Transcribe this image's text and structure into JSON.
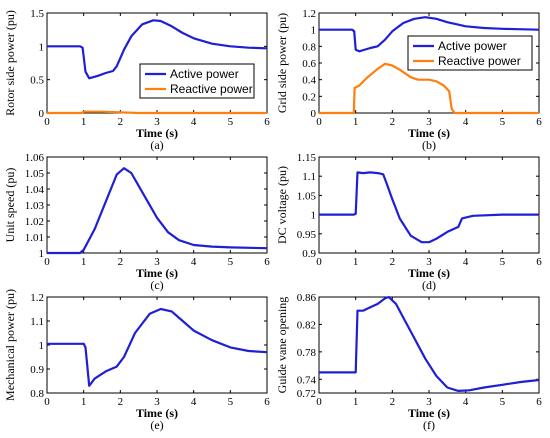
{
  "chart_data": [
    {
      "id": "a",
      "type": "line",
      "caption": "(a)",
      "xlabel": "Time (s)",
      "ylabel": "Rotor side power (pu)",
      "xlim": [
        0,
        6
      ],
      "ylim": [
        0,
        1.5
      ],
      "xticks": [
        "0",
        "1",
        "2",
        "3",
        "4",
        "5",
        "6"
      ],
      "yticks": [
        "0",
        "0.5",
        "1",
        "1.5"
      ],
      "ytick_values": [
        0,
        0.5,
        1,
        1.5
      ],
      "legend": "center-right",
      "series": [
        {
          "name": "Active power",
          "color": "#1f1fd6",
          "points": [
            [
              0,
              1
            ],
            [
              0.5,
              1
            ],
            [
              0.9,
              1
            ],
            [
              0.97,
              0.98
            ],
            [
              1.05,
              0.62
            ],
            [
              1.15,
              0.52
            ],
            [
              1.4,
              0.56
            ],
            [
              1.6,
              0.6
            ],
            [
              1.8,
              0.63
            ],
            [
              1.9,
              0.7
            ],
            [
              2.1,
              0.95
            ],
            [
              2.3,
              1.15
            ],
            [
              2.6,
              1.33
            ],
            [
              2.9,
              1.39
            ],
            [
              3.1,
              1.38
            ],
            [
              3.4,
              1.3
            ],
            [
              3.7,
              1.2
            ],
            [
              4,
              1.12
            ],
            [
              4.5,
              1.04
            ],
            [
              5,
              1
            ],
            [
              5.5,
              0.98
            ],
            [
              6,
              0.97
            ]
          ]
        },
        {
          "name": "Reactive power",
          "color": "#ff7f0e",
          "points": [
            [
              0,
              0
            ],
            [
              0.95,
              0
            ],
            [
              1,
              0.02
            ],
            [
              1.5,
              0.02
            ],
            [
              2,
              0.01
            ],
            [
              2.5,
              0
            ],
            [
              6,
              0
            ]
          ]
        }
      ]
    },
    {
      "id": "b",
      "type": "line",
      "caption": "(b)",
      "xlabel": "Time (s)",
      "ylabel": "Grid side power (pu)",
      "xlim": [
        0,
        6
      ],
      "ylim": [
        0,
        1.2
      ],
      "xticks": [
        "0",
        "1",
        "2",
        "3",
        "4",
        "5",
        "6"
      ],
      "yticks": [
        "0",
        "0.2",
        "0.4",
        "0.6",
        "0.8",
        "1",
        "1.2"
      ],
      "ytick_values": [
        0,
        0.2,
        0.4,
        0.6,
        0.8,
        1,
        1.2
      ],
      "legend": "center-right",
      "series": [
        {
          "name": "Active power",
          "color": "#1f1fd6",
          "points": [
            [
              0,
              1
            ],
            [
              0.9,
              1
            ],
            [
              0.96,
              0.98
            ],
            [
              1,
              0.76
            ],
            [
              1.1,
              0.74
            ],
            [
              1.4,
              0.78
            ],
            [
              1.6,
              0.8
            ],
            [
              1.8,
              0.88
            ],
            [
              2,
              0.98
            ],
            [
              2.3,
              1.08
            ],
            [
              2.6,
              1.13
            ],
            [
              2.9,
              1.15
            ],
            [
              3.2,
              1.13
            ],
            [
              3.5,
              1.09
            ],
            [
              4,
              1.04
            ],
            [
              4.5,
              1.02
            ],
            [
              5,
              1.01
            ],
            [
              6,
              1
            ]
          ]
        },
        {
          "name": "Reactive power",
          "color": "#ff7f0e",
          "points": [
            [
              0,
              0
            ],
            [
              0.95,
              0
            ],
            [
              0.97,
              0.3
            ],
            [
              1.1,
              0.33
            ],
            [
              1.3,
              0.42
            ],
            [
              1.6,
              0.53
            ],
            [
              1.8,
              0.59
            ],
            [
              2,
              0.57
            ],
            [
              2.2,
              0.52
            ],
            [
              2.5,
              0.43
            ],
            [
              2.7,
              0.4
            ],
            [
              3,
              0.4
            ],
            [
              3.2,
              0.38
            ],
            [
              3.4,
              0.33
            ],
            [
              3.55,
              0.26
            ],
            [
              3.62,
              0.05
            ],
            [
              3.7,
              0
            ],
            [
              6,
              0
            ]
          ]
        }
      ]
    },
    {
      "id": "c",
      "type": "line",
      "caption": "(c)",
      "xlabel": "Time (s)",
      "ylabel": "Unit speed (pu)",
      "xlim": [
        0,
        6
      ],
      "ylim": [
        1,
        1.06
      ],
      "xticks": [
        "0",
        "1",
        "2",
        "3",
        "4",
        "5",
        "6"
      ],
      "yticks": [
        "1",
        "1.01",
        "1.02",
        "1.03",
        "1.04",
        "1.05",
        "1.06"
      ],
      "ytick_values": [
        1,
        1.01,
        1.02,
        1.03,
        1.04,
        1.05,
        1.06
      ],
      "series": [
        {
          "color": "#1f1fd6",
          "points": [
            [
              0,
              1
            ],
            [
              0.9,
              1
            ],
            [
              1,
              1.002
            ],
            [
              1.3,
              1.015
            ],
            [
              1.6,
              1.032
            ],
            [
              1.9,
              1.049
            ],
            [
              2.1,
              1.053
            ],
            [
              2.3,
              1.05
            ],
            [
              2.6,
              1.038
            ],
            [
              3,
              1.022
            ],
            [
              3.3,
              1.013
            ],
            [
              3.6,
              1.008
            ],
            [
              4,
              1.005
            ],
            [
              4.5,
              1.004
            ],
            [
              5,
              1.0035
            ],
            [
              6,
              1.003
            ]
          ]
        }
      ]
    },
    {
      "id": "d",
      "type": "line",
      "caption": "(d)",
      "xlabel": "Time (s)",
      "ylabel": "DC voltage (pu)",
      "xlim": [
        0,
        6
      ],
      "ylim": [
        0.9,
        1.15
      ],
      "xticks": [
        "0",
        "1",
        "2",
        "3",
        "4",
        "5",
        "6"
      ],
      "yticks": [
        "0.9",
        "0.95",
        "1",
        "1.05",
        "1.1",
        "1.15"
      ],
      "ytick_values": [
        0.9,
        0.95,
        1,
        1.05,
        1.1,
        1.15
      ],
      "series": [
        {
          "color": "#1f1fd6",
          "points": [
            [
              0,
              1
            ],
            [
              0.95,
              1
            ],
            [
              1,
              1.002
            ],
            [
              1.05,
              1.11
            ],
            [
              1.2,
              1.108
            ],
            [
              1.4,
              1.11
            ],
            [
              1.6,
              1.108
            ],
            [
              1.75,
              1.105
            ],
            [
              1.85,
              1.08
            ],
            [
              2,
              1.04
            ],
            [
              2.2,
              0.99
            ],
            [
              2.5,
              0.945
            ],
            [
              2.8,
              0.928
            ],
            [
              3,
              0.928
            ],
            [
              3.2,
              0.937
            ],
            [
              3.5,
              0.955
            ],
            [
              3.8,
              0.968
            ],
            [
              3.9,
              0.99
            ],
            [
              4.2,
              0.997
            ],
            [
              5,
              1
            ],
            [
              6,
              1
            ]
          ]
        }
      ]
    },
    {
      "id": "e",
      "type": "line",
      "caption": "(e)",
      "xlabel": "Time (s)",
      "ylabel": "Mechanical power (pu)",
      "xlim": [
        0,
        6
      ],
      "ylim": [
        0.8,
        1.2
      ],
      "xticks": [
        "0",
        "1",
        "2",
        "3",
        "4",
        "5",
        "6"
      ],
      "yticks": [
        "0.8",
        "0.9",
        "1",
        "1.1",
        "1.2"
      ],
      "ytick_values": [
        0.8,
        0.9,
        1,
        1.1,
        1.2
      ],
      "series": [
        {
          "color": "#1f1fd6",
          "points": [
            [
              0,
              1.005
            ],
            [
              1,
              1.005
            ],
            [
              1.05,
              0.99
            ],
            [
              1.15,
              0.83
            ],
            [
              1.3,
              0.86
            ],
            [
              1.6,
              0.89
            ],
            [
              1.9,
              0.91
            ],
            [
              2.1,
              0.95
            ],
            [
              2.4,
              1.05
            ],
            [
              2.8,
              1.13
            ],
            [
              3.1,
              1.15
            ],
            [
              3.4,
              1.14
            ],
            [
              3.7,
              1.1
            ],
            [
              4,
              1.06
            ],
            [
              4.5,
              1.02
            ],
            [
              5,
              0.99
            ],
            [
              5.5,
              0.975
            ],
            [
              6,
              0.97
            ]
          ]
        }
      ]
    },
    {
      "id": "f",
      "type": "line",
      "caption": "(f)",
      "xlabel": "Time (s)",
      "ylabel": "Guide vane opening",
      "xlim": [
        0,
        6
      ],
      "ylim": [
        0.72,
        0.86
      ],
      "xticks": [
        "0",
        "1",
        "2",
        "3",
        "4",
        "5",
        "6"
      ],
      "yticks": [
        "0.72",
        "0.74",
        "0.78",
        "0.82",
        "0.86"
      ],
      "ytick_values": [
        0.72,
        0.74,
        0.78,
        0.82,
        0.86
      ],
      "series": [
        {
          "color": "#1f1fd6",
          "points": [
            [
              0,
              0.75
            ],
            [
              1,
              0.75
            ],
            [
              1.05,
              0.84
            ],
            [
              1.2,
              0.84
            ],
            [
              1.4,
              0.845
            ],
            [
              1.6,
              0.85
            ],
            [
              1.8,
              0.858
            ],
            [
              1.9,
              0.86
            ],
            [
              2.1,
              0.85
            ],
            [
              2.3,
              0.83
            ],
            [
              2.6,
              0.8
            ],
            [
              2.9,
              0.77
            ],
            [
              3.2,
              0.745
            ],
            [
              3.5,
              0.728
            ],
            [
              3.8,
              0.723
            ],
            [
              4.1,
              0.724
            ],
            [
              4.5,
              0.728
            ],
            [
              5,
              0.732
            ],
            [
              5.5,
              0.736
            ],
            [
              6,
              0.739
            ]
          ]
        }
      ]
    }
  ]
}
